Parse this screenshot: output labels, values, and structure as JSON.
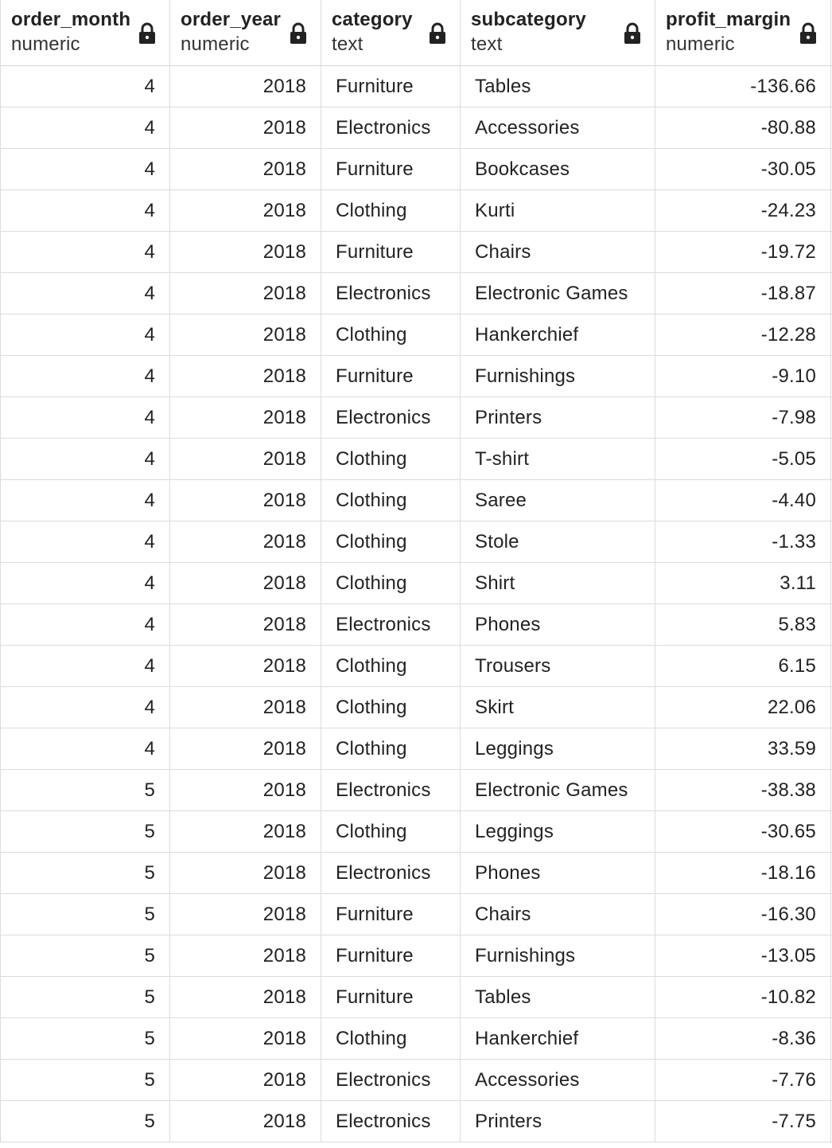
{
  "columns": [
    {
      "name": "order_month",
      "type": "numeric",
      "lock_icon": "lock-icon"
    },
    {
      "name": "order_year",
      "type": "numeric",
      "lock_icon": "lock-icon"
    },
    {
      "name": "category",
      "type": "text",
      "lock_icon": "lock-icon"
    },
    {
      "name": "subcategory",
      "type": "text",
      "lock_icon": "lock-icon"
    },
    {
      "name": "profit_margin",
      "type": "numeric",
      "lock_icon": "lock-icon"
    }
  ],
  "rows": [
    [
      "4",
      "2018",
      "Furniture",
      "Tables",
      "-136.66"
    ],
    [
      "4",
      "2018",
      "Electronics",
      "Accessories",
      "-80.88"
    ],
    [
      "4",
      "2018",
      "Furniture",
      "Bookcases",
      "-30.05"
    ],
    [
      "4",
      "2018",
      "Clothing",
      "Kurti",
      "-24.23"
    ],
    [
      "4",
      "2018",
      "Furniture",
      "Chairs",
      "-19.72"
    ],
    [
      "4",
      "2018",
      "Electronics",
      "Electronic Games",
      "-18.87"
    ],
    [
      "4",
      "2018",
      "Clothing",
      "Hankerchief",
      "-12.28"
    ],
    [
      "4",
      "2018",
      "Furniture",
      "Furnishings",
      "-9.10"
    ],
    [
      "4",
      "2018",
      "Electronics",
      "Printers",
      "-7.98"
    ],
    [
      "4",
      "2018",
      "Clothing",
      "T-shirt",
      "-5.05"
    ],
    [
      "4",
      "2018",
      "Clothing",
      "Saree",
      "-4.40"
    ],
    [
      "4",
      "2018",
      "Clothing",
      "Stole",
      "-1.33"
    ],
    [
      "4",
      "2018",
      "Clothing",
      "Shirt",
      "3.11"
    ],
    [
      "4",
      "2018",
      "Electronics",
      "Phones",
      "5.83"
    ],
    [
      "4",
      "2018",
      "Clothing",
      "Trousers",
      "6.15"
    ],
    [
      "4",
      "2018",
      "Clothing",
      "Skirt",
      "22.06"
    ],
    [
      "4",
      "2018",
      "Clothing",
      "Leggings",
      "33.59"
    ],
    [
      "5",
      "2018",
      "Electronics",
      "Electronic Games",
      "-38.38"
    ],
    [
      "5",
      "2018",
      "Clothing",
      "Leggings",
      "-30.65"
    ],
    [
      "5",
      "2018",
      "Electronics",
      "Phones",
      "-18.16"
    ],
    [
      "5",
      "2018",
      "Furniture",
      "Chairs",
      "-16.30"
    ],
    [
      "5",
      "2018",
      "Furniture",
      "Furnishings",
      "-13.05"
    ],
    [
      "5",
      "2018",
      "Furniture",
      "Tables",
      "-10.82"
    ],
    [
      "5",
      "2018",
      "Clothing",
      "Hankerchief",
      "-8.36"
    ],
    [
      "5",
      "2018",
      "Electronics",
      "Accessories",
      "-7.76"
    ],
    [
      "5",
      "2018",
      "Electronics",
      "Printers",
      "-7.75"
    ]
  ]
}
